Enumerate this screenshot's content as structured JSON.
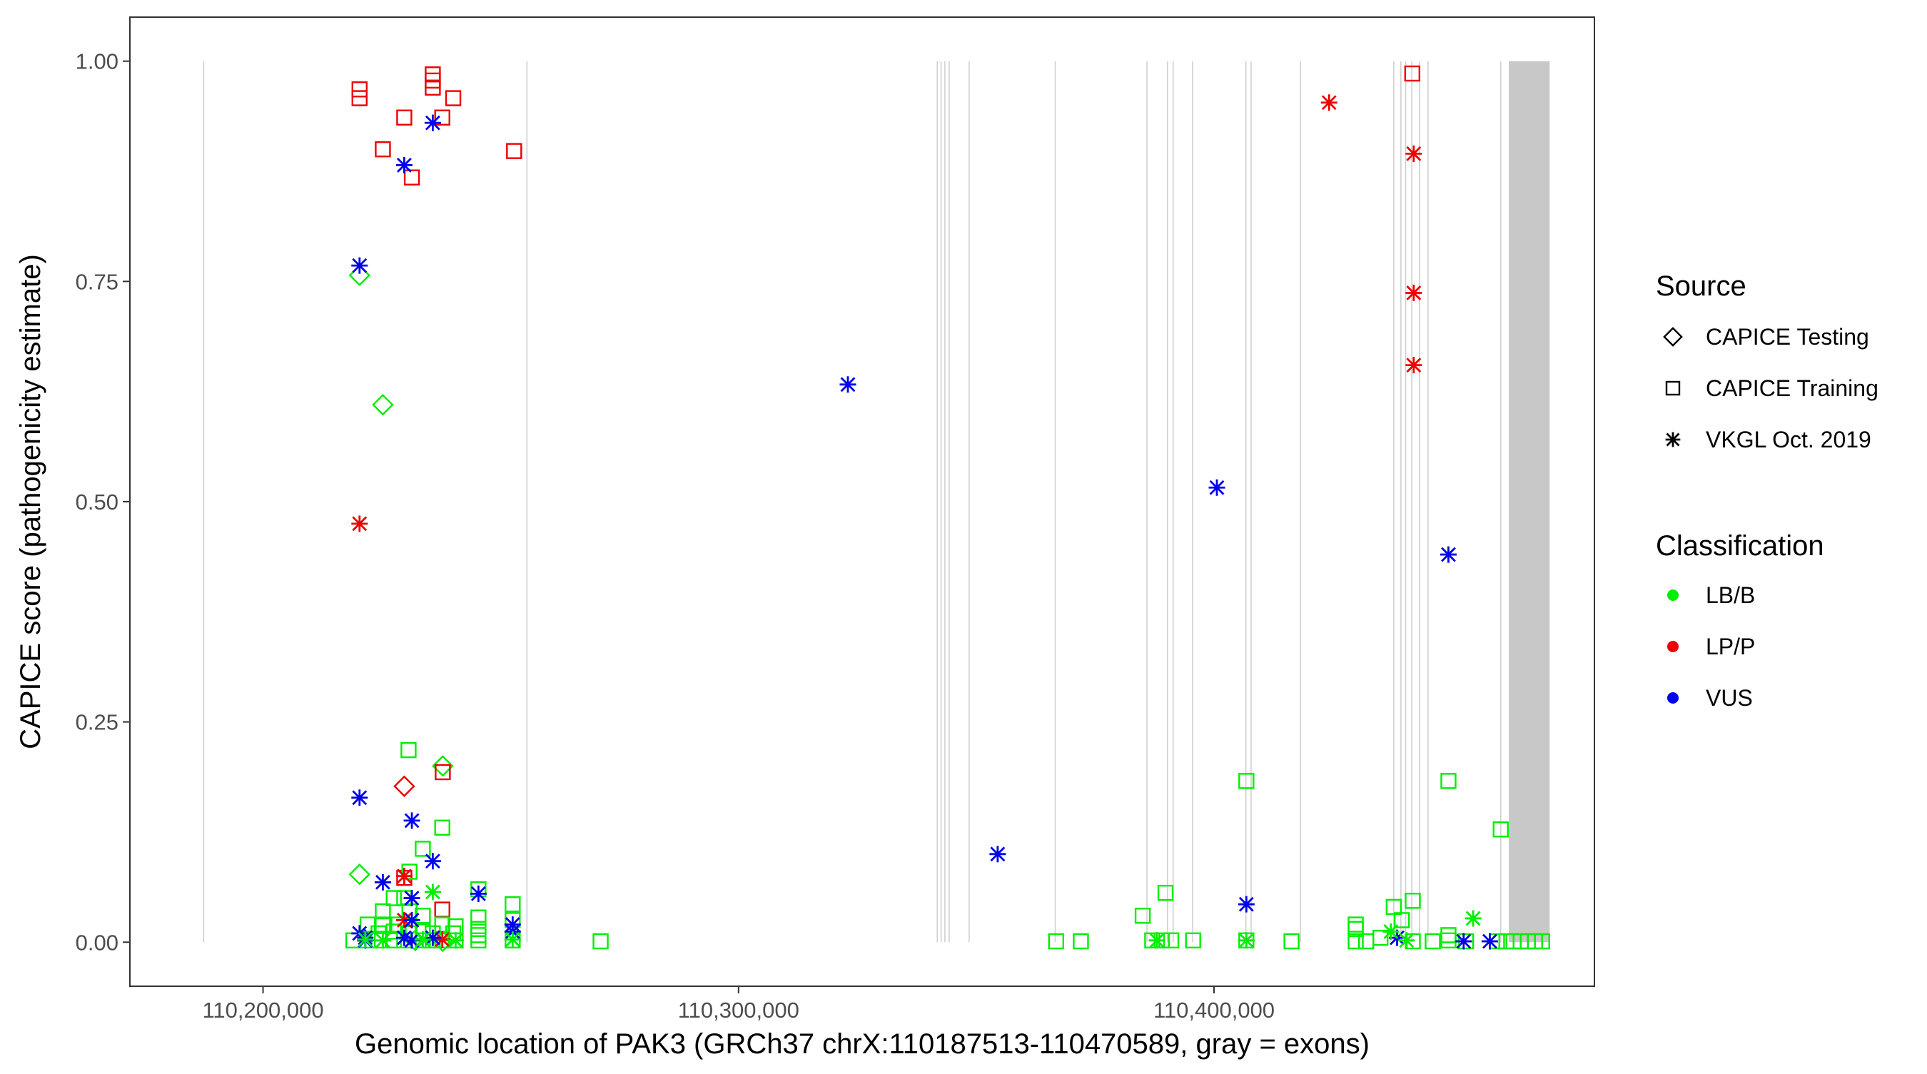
{
  "chart_data": {
    "type": "scatter",
    "title": "",
    "xlabel": "Genomic location of PAK3 (GRCh37 chrX:110187513-110470589, gray = exons)",
    "ylabel": "CAPICE score (pathogenicity estimate)",
    "xlim": [
      110172000,
      110480000
    ],
    "ylim": [
      -0.05,
      1.05
    ],
    "x_ticks": [
      110200000,
      110300000,
      110400000
    ],
    "x_tick_labels": [
      "110,200,000",
      "110,300,000",
      "110,400,000"
    ],
    "y_ticks": [
      0,
      0.25,
      0.5,
      0.75,
      1
    ],
    "y_tick_labels": [
      "0.00",
      "0.25",
      "0.50",
      "0.75",
      "1.00"
    ],
    "grid": false,
    "exon_lines": [
      110187513,
      110255500,
      110341800,
      110342600,
      110343400,
      110344300,
      110348500,
      110366600,
      110385900,
      110390200,
      110391400,
      110395500,
      110406700,
      110407800,
      110418200,
      110437800,
      110439300,
      110440300,
      110441600,
      110443200,
      110445000,
      110460300
    ],
    "exon_bands": [
      [
        110462000,
        110470589
      ]
    ],
    "legend": {
      "position": "right",
      "source_title": "Source",
      "source_items": [
        {
          "label": "CAPICE Testing",
          "shape": "diamond-icon"
        },
        {
          "label": "CAPICE Training",
          "shape": "square-icon"
        },
        {
          "label": "VKGL Oct. 2019",
          "shape": "asterisk-icon"
        }
      ],
      "class_title": "Classification",
      "class_items": [
        {
          "label": "LB/B",
          "color": "#00ee00"
        },
        {
          "label": "LP/P",
          "color": "#ee0000"
        },
        {
          "label": "VUS",
          "color": "#0000ee"
        }
      ]
    },
    "series": [
      {
        "name": "CAPICE Testing",
        "classification": "LB/B",
        "shape": "diamond",
        "color": "#00ee00",
        "points": [
          [
            110220300,
            0.757
          ],
          [
            110225200,
            0.61
          ],
          [
            110220300,
            0.077
          ],
          [
            110237800,
            0.2
          ],
          [
            110232000,
            0.002
          ],
          [
            110237800,
            0.001
          ]
        ]
      },
      {
        "name": "CAPICE Testing",
        "classification": "LP/P",
        "shape": "diamond",
        "color": "#ee0000",
        "points": [
          [
            110229700,
            0.177
          ]
        ]
      },
      {
        "name": "CAPICE Training",
        "classification": "LP/P",
        "shape": "square",
        "color": "#ee0000",
        "points": [
          [
            110220300,
            0.968
          ],
          [
            110220300,
            0.958
          ],
          [
            110229700,
            0.936
          ],
          [
            110225200,
            0.9
          ],
          [
            110231300,
            0.868
          ],
          [
            110235700,
            0.985
          ],
          [
            110235700,
            0.978
          ],
          [
            110235700,
            0.97
          ],
          [
            110237700,
            0.936
          ],
          [
            110240000,
            0.958
          ],
          [
            110252800,
            0.898
          ],
          [
            110441700,
            0.986
          ],
          [
            110237800,
            0.193
          ],
          [
            110229700,
            0.073
          ],
          [
            110237700,
            0.037
          ]
        ]
      },
      {
        "name": "CAPICE Training",
        "classification": "LB/B",
        "shape": "square",
        "color": "#00ee00",
        "points": [
          [
            110230600,
            0.218
          ],
          [
            110237700,
            0.13
          ],
          [
            110233600,
            0.106
          ],
          [
            110230800,
            0.08
          ],
          [
            110245300,
            0.06
          ],
          [
            110227500,
            0.05
          ],
          [
            110229700,
            0.05
          ],
          [
            110252500,
            0.043
          ],
          [
            110225200,
            0.035
          ],
          [
            110230800,
            0.035
          ],
          [
            110233600,
            0.03
          ],
          [
            110245300,
            0.028
          ],
          [
            110252500,
            0.025
          ],
          [
            110222000,
            0.02
          ],
          [
            110225200,
            0.02
          ],
          [
            110228500,
            0.02
          ],
          [
            110237700,
            0.02
          ],
          [
            110240500,
            0.018
          ],
          [
            110245300,
            0.015
          ],
          [
            110233600,
            0.012
          ],
          [
            110224300,
            0.01
          ],
          [
            110227500,
            0.012
          ],
          [
            110230800,
            0.01
          ],
          [
            110235700,
            0.01
          ],
          [
            110240000,
            0.01
          ],
          [
            110245300,
            0.008
          ],
          [
            110219000,
            0.002
          ],
          [
            110222000,
            0.002
          ],
          [
            110224300,
            0.002
          ],
          [
            110227500,
            0.002
          ],
          [
            110229700,
            0.002
          ],
          [
            110233600,
            0.002
          ],
          [
            110235700,
            0.002
          ],
          [
            110237700,
            0.002
          ],
          [
            110240500,
            0.002
          ],
          [
            110245300,
            0.002
          ],
          [
            110252500,
            0.002
          ],
          [
            110271000,
            0.001
          ],
          [
            110366800,
            0.001
          ],
          [
            110372000,
            0.001
          ],
          [
            110385000,
            0.03
          ],
          [
            110389800,
            0.056
          ],
          [
            110387000,
            0.002
          ],
          [
            110389000,
            0.002
          ],
          [
            110391000,
            0.002
          ],
          [
            110395600,
            0.002
          ],
          [
            110406800,
            0.183
          ],
          [
            110406800,
            0.002
          ],
          [
            110416300,
            0.001
          ],
          [
            110429800,
            0.02
          ],
          [
            110429800,
            0.015
          ],
          [
            110429800,
            0.001
          ],
          [
            110432000,
            0.001
          ],
          [
            110435000,
            0.005
          ],
          [
            110437800,
            0.04
          ],
          [
            110439500,
            0.025
          ],
          [
            110441800,
            0.047
          ],
          [
            110441800,
            0.001
          ],
          [
            110446000,
            0.001
          ],
          [
            110449300,
            0.183
          ],
          [
            110449300,
            0.008
          ],
          [
            110449300,
            0.002
          ],
          [
            110453000,
            0.001
          ],
          [
            110459500,
            0.001
          ],
          [
            110460300,
            0.128
          ],
          [
            110461500,
            0.001
          ],
          [
            110463000,
            0.001
          ],
          [
            110464500,
            0.001
          ],
          [
            110466000,
            0.001
          ],
          [
            110467500,
            0.001
          ],
          [
            110469000,
            0.001
          ]
        ]
      },
      {
        "name": "VKGL Oct. 2019",
        "classification": "LP/P",
        "shape": "asterisk",
        "color": "#ee0000",
        "points": [
          [
            110220300,
            0.475
          ],
          [
            110229700,
            0.075
          ],
          [
            110229700,
            0.025
          ],
          [
            110237700,
            0.003
          ],
          [
            110424200,
            0.953
          ],
          [
            110442000,
            0.895
          ],
          [
            110442000,
            0.737
          ],
          [
            110442000,
            0.655
          ]
        ]
      },
      {
        "name": "VKGL Oct. 2019",
        "classification": "VUS",
        "shape": "asterisk",
        "color": "#0000ee",
        "points": [
          [
            110235700,
            0.93
          ],
          [
            110229700,
            0.882
          ],
          [
            110220300,
            0.768
          ],
          [
            110323000,
            0.633
          ],
          [
            110400600,
            0.516
          ],
          [
            110449300,
            0.44
          ],
          [
            110220300,
            0.164
          ],
          [
            110231300,
            0.138
          ],
          [
            110354500,
            0.1
          ],
          [
            110235700,
            0.092
          ],
          [
            110225200,
            0.068
          ],
          [
            110245300,
            0.055
          ],
          [
            110231300,
            0.05
          ],
          [
            110406800,
            0.043
          ],
          [
            110231300,
            0.025
          ],
          [
            110252500,
            0.02
          ],
          [
            110252500,
            0.012
          ],
          [
            110220300,
            0.01
          ],
          [
            110221500,
            0.005
          ],
          [
            110229700,
            0.005
          ],
          [
            110235700,
            0.005
          ],
          [
            110221500,
            0.002
          ],
          [
            110231300,
            0.002
          ],
          [
            110438500,
            0.005
          ],
          [
            110452500,
            0.001
          ],
          [
            110458000,
            0.001
          ]
        ]
      },
      {
        "name": "VKGL Oct. 2019",
        "classification": "LB/B",
        "shape": "asterisk",
        "color": "#00ee00",
        "points": [
          [
            110235700,
            0.057
          ],
          [
            110454500,
            0.027
          ],
          [
            110221500,
            0.003
          ],
          [
            110225200,
            0.002
          ],
          [
            110233600,
            0.003
          ],
          [
            110240500,
            0.002
          ],
          [
            110252500,
            0.003
          ],
          [
            110388000,
            0.002
          ],
          [
            110406800,
            0.002
          ],
          [
            110437200,
            0.012
          ],
          [
            110440500,
            0.002
          ]
        ]
      }
    ]
  }
}
